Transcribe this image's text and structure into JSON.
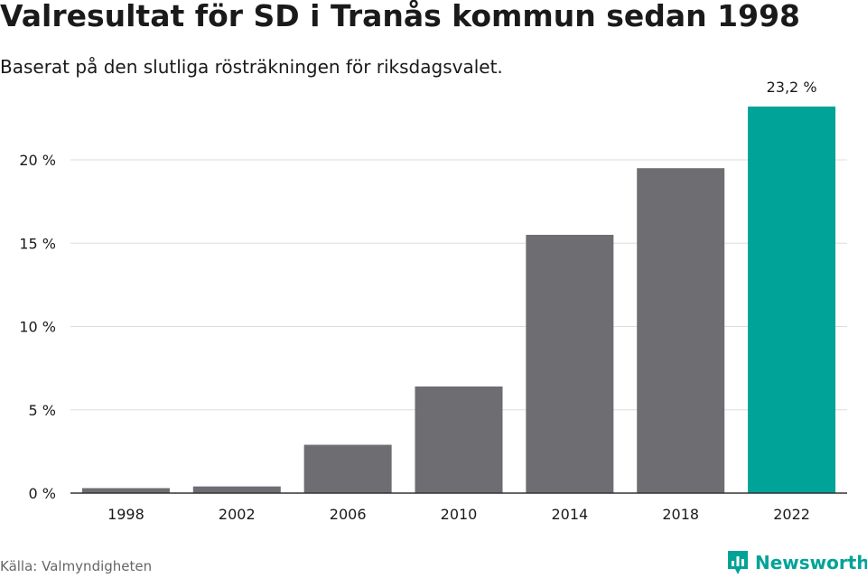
{
  "title": "Valresultat för SD i Tranås kommun sedan 1998",
  "subtitle": "Baserat på den slutliga rösträkningen för riksdagsvalet.",
  "source": "Källa: Valmyndigheten",
  "brand": {
    "name": "Newsworthy",
    "icon": "newsworthy-logo-icon",
    "color": "#00a398"
  },
  "colors": {
    "bar": "#6e6d72",
    "highlight": "#00a398",
    "grid": "#dddddd",
    "axis": "#333333",
    "text": "#1a1a1a"
  },
  "chart_data": {
    "type": "bar",
    "categories": [
      "1998",
      "2002",
      "2006",
      "2010",
      "2014",
      "2018",
      "2022"
    ],
    "values": [
      0.3,
      0.4,
      2.9,
      6.4,
      15.5,
      19.5,
      23.2
    ],
    "highlight_index": 6,
    "data_labels": [
      {
        "index": 6,
        "text": "23,2 %"
      }
    ],
    "yticks": [
      {
        "value": 0,
        "label": "0 %"
      },
      {
        "value": 5,
        "label": "5 %"
      },
      {
        "value": 10,
        "label": "10 %"
      },
      {
        "value": 15,
        "label": "15 %"
      },
      {
        "value": 20,
        "label": "20 %"
      }
    ],
    "ylim": [
      0,
      25
    ],
    "xlabel": "",
    "ylabel": "",
    "grid": true,
    "legend": "none"
  }
}
